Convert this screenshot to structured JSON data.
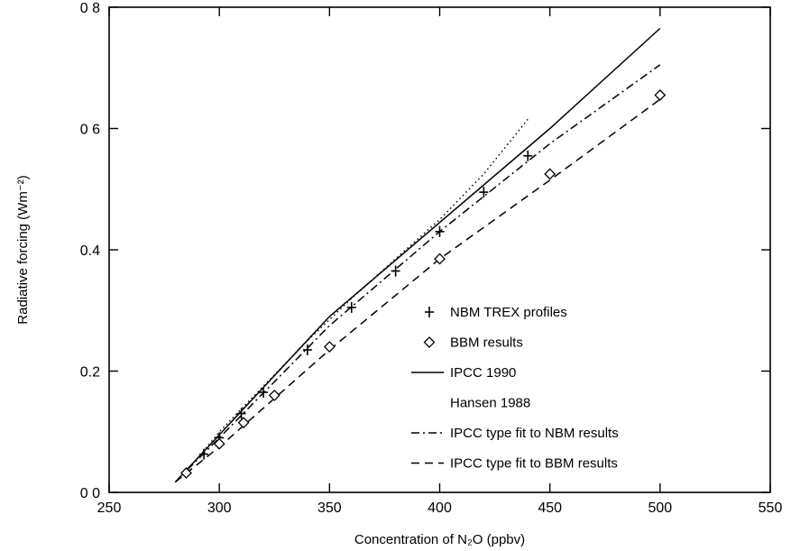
{
  "chart_data": {
    "type": "line",
    "xlabel": "Concentration of N₂O (ppbv)",
    "ylabel": "Radiative forcing (Wm⁻²)",
    "xlim": [
      250,
      550
    ],
    "ylim": [
      0.0,
      0.8
    ],
    "x_ticks": [
      250,
      300,
      350,
      400,
      450,
      500,
      550
    ],
    "x_tick_labels": [
      "250",
      "300",
      "350",
      "400",
      "450",
      "500",
      "550"
    ],
    "y_ticks": [
      0.0,
      0.2,
      0.4,
      0.6,
      0.8
    ],
    "y_tick_labels": [
      "0 0",
      "0.2",
      "0.4",
      "0 6",
      "0 8"
    ],
    "grid": false,
    "legend_position": "center-right",
    "series": [
      {
        "name": "NBM TREX profiles",
        "kind": "marker",
        "marker": "plus",
        "x": [
          293,
          300,
          310,
          320,
          340,
          360,
          380,
          400,
          420,
          440
        ],
        "y": [
          0.063,
          0.09,
          0.13,
          0.165,
          0.235,
          0.305,
          0.365,
          0.43,
          0.495,
          0.555
        ]
      },
      {
        "name": "BBM results",
        "kind": "marker",
        "marker": "diamond",
        "x": [
          285,
          300,
          311,
          325,
          350,
          400,
          450,
          500
        ],
        "y": [
          0.032,
          0.08,
          0.115,
          0.16,
          0.24,
          0.385,
          0.525,
          0.655
        ]
      },
      {
        "name": "IPCC 1990",
        "kind": "line",
        "dash": "solid",
        "x": [
          280,
          300,
          350,
          400,
          450,
          500
        ],
        "y": [
          0.017,
          0.095,
          0.29,
          0.445,
          0.6,
          0.765
        ]
      },
      {
        "name": "Hansen 1988",
        "kind": "line",
        "dash": "dotted",
        "x": [
          290,
          300,
          320,
          340,
          360,
          380,
          400,
          420,
          440
        ],
        "y": [
          0.055,
          0.1,
          0.175,
          0.25,
          0.32,
          0.385,
          0.45,
          0.525,
          0.615
        ]
      },
      {
        "name": "IPCC type fit to NBM results",
        "kind": "line",
        "dash": "dashdot",
        "x": [
          280,
          300,
          350,
          400,
          450,
          500
        ],
        "y": [
          0.017,
          0.09,
          0.275,
          0.43,
          0.575,
          0.705
        ]
      },
      {
        "name": "IPCC type fit to BBM results",
        "kind": "line",
        "dash": "dashed",
        "x": [
          280,
          300,
          350,
          400,
          450,
          500
        ],
        "y": [
          0.017,
          0.075,
          0.235,
          0.385,
          0.515,
          0.648
        ]
      }
    ]
  }
}
